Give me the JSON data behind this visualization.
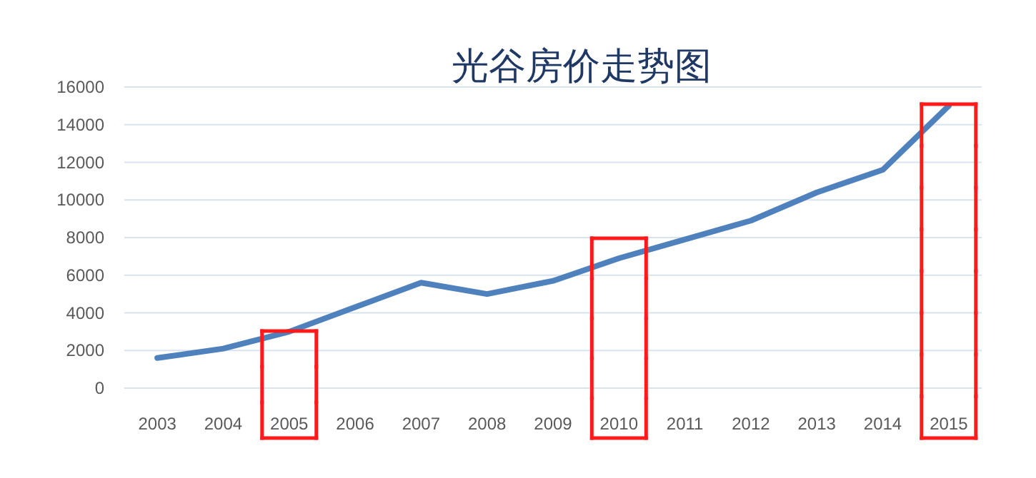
{
  "chart_data": {
    "type": "line",
    "title": "光谷房价走势图",
    "categories": [
      "2003",
      "2004",
      "2005",
      "2006",
      "2007",
      "2008",
      "2009",
      "2010",
      "2011",
      "2012",
      "2013",
      "2014",
      "2015"
    ],
    "values": [
      1600,
      2100,
      3000,
      4300,
      5600,
      5000,
      5700,
      6900,
      7900,
      8900,
      10400,
      11600,
      15000
    ],
    "color": "#4f81bd",
    "ylim": [
      0,
      16000
    ],
    "yticks": [
      0,
      2000,
      4000,
      6000,
      8000,
      10000,
      12000,
      14000,
      16000
    ],
    "grid": "y"
  }
}
